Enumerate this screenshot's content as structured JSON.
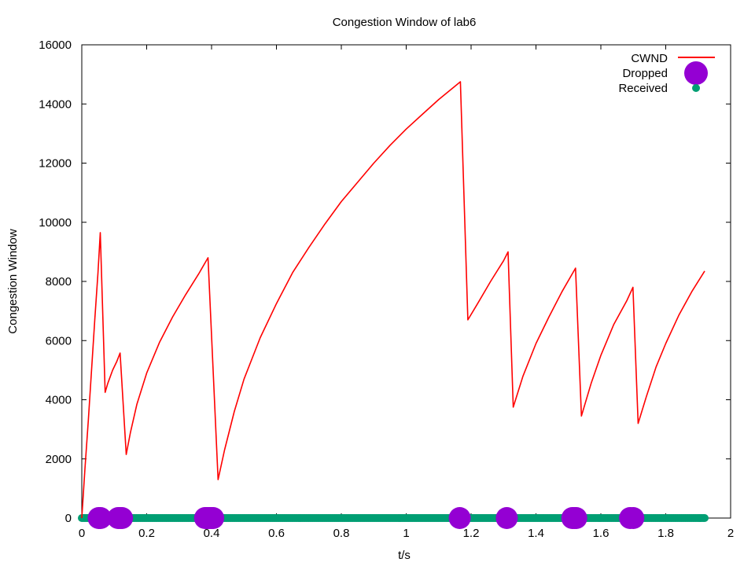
{
  "chart_data": {
    "type": "line",
    "title": "Congestion Window of lab6",
    "xlabel": "t/s",
    "ylabel": "Congestion Window",
    "xlim": [
      0,
      2
    ],
    "ylim": [
      0,
      16000
    ],
    "xticks": [
      0,
      0.2,
      0.4,
      0.6,
      0.8,
      1,
      1.2,
      1.4,
      1.6,
      1.8,
      2
    ],
    "xtick_labels": [
      "0",
      "0.2",
      "0.4",
      "0.6",
      "0.8",
      "1",
      "1.2",
      "1.4",
      "1.6",
      "1.8",
      "2"
    ],
    "yticks": [
      0,
      2000,
      4000,
      6000,
      8000,
      10000,
      12000,
      14000,
      16000
    ],
    "ytick_labels": [
      "0",
      "2000",
      "4000",
      "6000",
      "8000",
      "10000",
      "12000",
      "14000",
      "16000"
    ],
    "grid": false,
    "legend_position": "top-right",
    "series": [
      {
        "name": "CWND",
        "style": "line",
        "color": "#ff0000",
        "points": [
          [
            0.0,
            0
          ],
          [
            0.01,
            1700
          ],
          [
            0.02,
            3300
          ],
          [
            0.03,
            5000
          ],
          [
            0.04,
            6700
          ],
          [
            0.05,
            8300
          ],
          [
            0.057,
            9650
          ],
          [
            0.072,
            4250
          ],
          [
            0.08,
            4550
          ],
          [
            0.095,
            5000
          ],
          [
            0.108,
            5300
          ],
          [
            0.118,
            5580
          ],
          [
            0.137,
            2150
          ],
          [
            0.15,
            2900
          ],
          [
            0.17,
            3850
          ],
          [
            0.2,
            4900
          ],
          [
            0.24,
            5950
          ],
          [
            0.28,
            6800
          ],
          [
            0.32,
            7550
          ],
          [
            0.36,
            8250
          ],
          [
            0.389,
            8800
          ],
          [
            0.42,
            1300
          ],
          [
            0.44,
            2300
          ],
          [
            0.47,
            3600
          ],
          [
            0.5,
            4700
          ],
          [
            0.55,
            6100
          ],
          [
            0.6,
            7250
          ],
          [
            0.65,
            8300
          ],
          [
            0.7,
            9150
          ],
          [
            0.75,
            9950
          ],
          [
            0.8,
            10700
          ],
          [
            0.85,
            11350
          ],
          [
            0.9,
            12000
          ],
          [
            0.95,
            12600
          ],
          [
            1.0,
            13150
          ],
          [
            1.05,
            13650
          ],
          [
            1.1,
            14150
          ],
          [
            1.15,
            14600
          ],
          [
            1.167,
            14750
          ],
          [
            1.19,
            6700
          ],
          [
            1.22,
            7250
          ],
          [
            1.26,
            8000
          ],
          [
            1.3,
            8700
          ],
          [
            1.314,
            9000
          ],
          [
            1.33,
            3750
          ],
          [
            1.36,
            4800
          ],
          [
            1.4,
            5900
          ],
          [
            1.44,
            6800
          ],
          [
            1.48,
            7650
          ],
          [
            1.522,
            8450
          ],
          [
            1.54,
            3450
          ],
          [
            1.57,
            4550
          ],
          [
            1.6,
            5500
          ],
          [
            1.64,
            6550
          ],
          [
            1.68,
            7350
          ],
          [
            1.699,
            7800
          ],
          [
            1.715,
            3200
          ],
          [
            1.74,
            4100
          ],
          [
            1.77,
            5100
          ],
          [
            1.8,
            5900
          ],
          [
            1.84,
            6850
          ],
          [
            1.88,
            7650
          ],
          [
            1.92,
            8350
          ]
        ]
      },
      {
        "name": "Dropped",
        "style": "points",
        "color": "#9400d3",
        "x": [
          0.052,
          0.058,
          0.112,
          0.118,
          0.124,
          0.38,
          0.385,
          0.39,
          0.395,
          0.4,
          0.405,
          1.165,
          1.31,
          1.512,
          1.518,
          1.524,
          1.69,
          1.7
        ],
        "y": [
          0,
          0,
          0,
          0,
          0,
          0,
          0,
          0,
          0,
          0,
          0,
          0,
          0,
          0,
          0,
          0,
          0,
          0
        ]
      },
      {
        "name": "Received",
        "style": "points",
        "color": "#009e73",
        "x_range": [
          0.0,
          1.92
        ],
        "x_step": 0.004,
        "y_value": 0
      }
    ]
  }
}
